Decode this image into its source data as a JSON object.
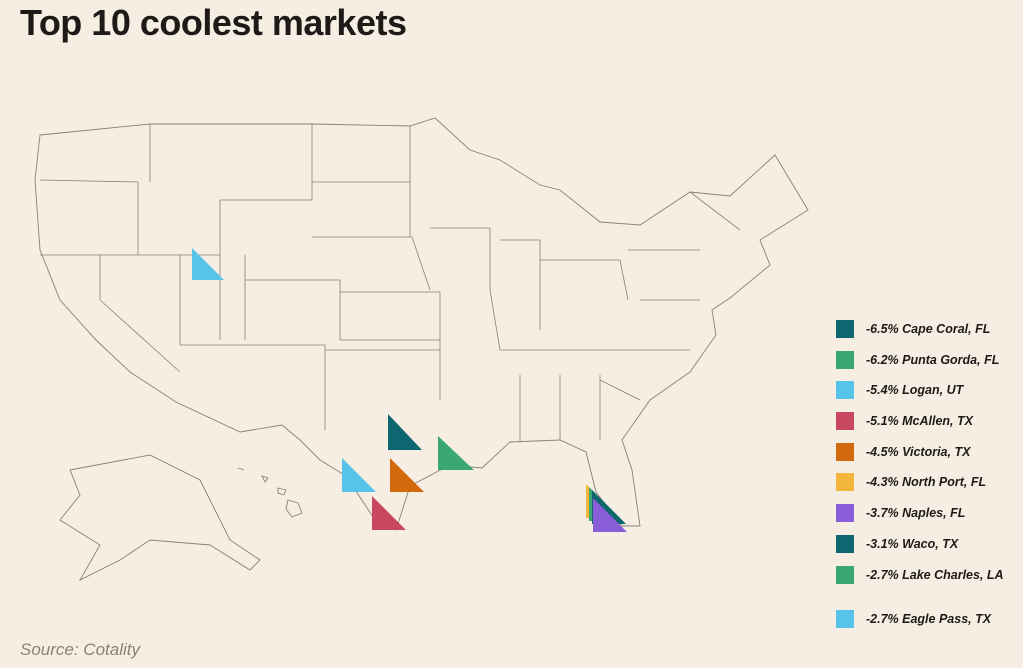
{
  "header": {
    "title": "Top 10 coolest markets"
  },
  "legend": {
    "items": [
      {
        "label": "-6.5% Cape Coral, FL",
        "color": "#0e6670"
      },
      {
        "label": "-6.2% Punta Gorda, FL",
        "color": "#3ba872"
      },
      {
        "label": "-5.4% Logan, UT",
        "color": "#57c3e8"
      },
      {
        "label": "-5.1% McAllen, TX",
        "color": "#c9485f"
      },
      {
        "label": "-4.5% Victoria, TX",
        "color": "#d2690c"
      },
      {
        "label": "-4.3% North Port, FL",
        "color": "#f2b63c"
      },
      {
        "label": "-3.7% Naples, FL",
        "color": "#8a5dd8"
      },
      {
        "label": "-3.1% Waco, TX",
        "color": "#0e6670"
      },
      {
        "label": "-2.7% Lake Charles, LA",
        "color": "#3ba872"
      },
      {
        "label": "-2.7% Eagle Pass, TX",
        "color": "#57c3e8"
      }
    ]
  },
  "footer": {
    "source": "Source: Cotality"
  }
}
